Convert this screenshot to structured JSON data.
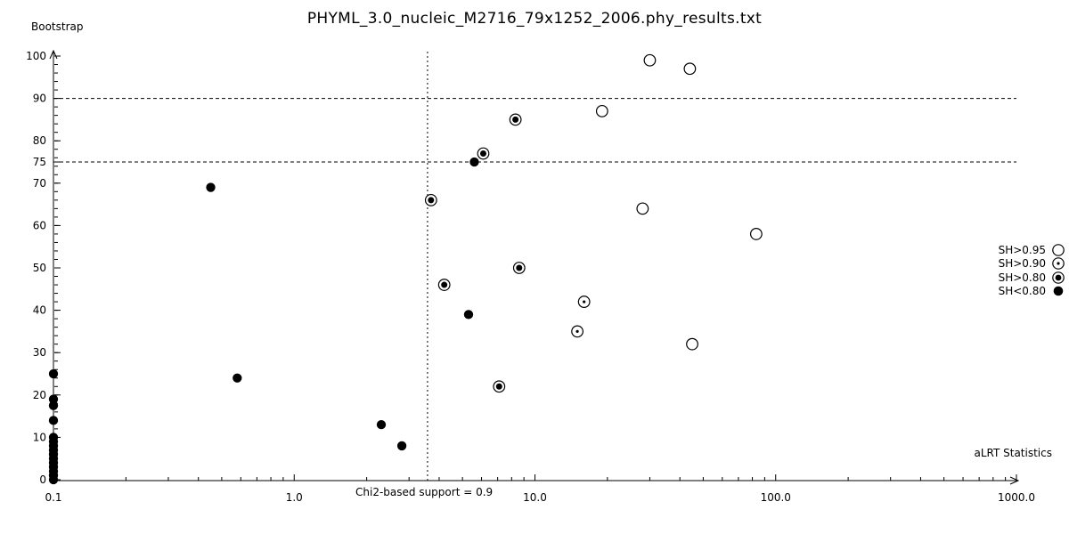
{
  "colors": {
    "foreground": "#000000",
    "background": "#ffffff"
  },
  "chart_data": {
    "type": "scatter",
    "title": "PHYML_3.0_nucleic_M2716_79x1252_2006.phy_results.txt",
    "xlabel": "aLRT Statistics",
    "ylabel": "Bootstrap",
    "x_scale": "log",
    "xlim": [
      0.1,
      1000.0
    ],
    "ylim": [
      0,
      100
    ],
    "x_tick_values": [
      0.1,
      1.0,
      10.0,
      100.0,
      1000.0
    ],
    "x_tick_labels": [
      "0.1",
      "1.0",
      "10.0",
      "100.0",
      "1000.0"
    ],
    "y_tick_values": [
      0,
      10,
      20,
      30,
      40,
      50,
      60,
      70,
      75,
      80,
      90,
      100
    ],
    "y_tick_labels": [
      "0",
      "10",
      "20",
      "30",
      "40",
      "50",
      "60",
      "70",
      "75",
      "80",
      "90",
      "100"
    ],
    "y_minor_tick_step": 2,
    "grid": "off",
    "legend_position": "right",
    "reference_lines": {
      "horizontal_y": [
        90,
        75
      ],
      "vertical": {
        "x": 3.58,
        "label": "Chi2-based support = 0.9"
      }
    },
    "series": [
      {
        "name": "SH>0.95",
        "marker": "open-circle",
        "points": [
          [
            30,
            99
          ],
          [
            44,
            97
          ],
          [
            19,
            87
          ],
          [
            28,
            64
          ],
          [
            83,
            58
          ],
          [
            45,
            32
          ]
        ]
      },
      {
        "name": "SH>0.90",
        "marker": "dotted-circle",
        "points": [
          [
            16,
            42
          ],
          [
            15,
            35
          ]
        ]
      },
      {
        "name": "SH>0.80",
        "marker": "bullseye-circle",
        "points": [
          [
            8.3,
            85
          ],
          [
            6.1,
            77
          ],
          [
            3.7,
            66
          ],
          [
            8.6,
            50
          ],
          [
            4.2,
            46
          ],
          [
            7.1,
            22
          ]
        ]
      },
      {
        "name": "SH<0.80",
        "marker": "filled-circle",
        "points": [
          [
            0.45,
            69
          ],
          [
            5.6,
            75
          ],
          [
            5.3,
            39
          ],
          [
            0.58,
            24
          ],
          [
            2.3,
            13
          ],
          [
            2.8,
            8
          ],
          [
            0.1,
            25
          ],
          [
            0.1,
            19
          ],
          [
            0.1,
            17.5
          ],
          [
            0.1,
            14
          ],
          [
            0.1,
            10
          ],
          [
            0.1,
            9
          ],
          [
            0.1,
            8
          ],
          [
            0.1,
            7
          ],
          [
            0.1,
            6
          ],
          [
            0.1,
            5
          ],
          [
            0.1,
            4
          ],
          [
            0.1,
            3
          ],
          [
            0.1,
            2
          ],
          [
            0.1,
            1
          ],
          [
            0.1,
            0
          ]
        ]
      }
    ]
  }
}
